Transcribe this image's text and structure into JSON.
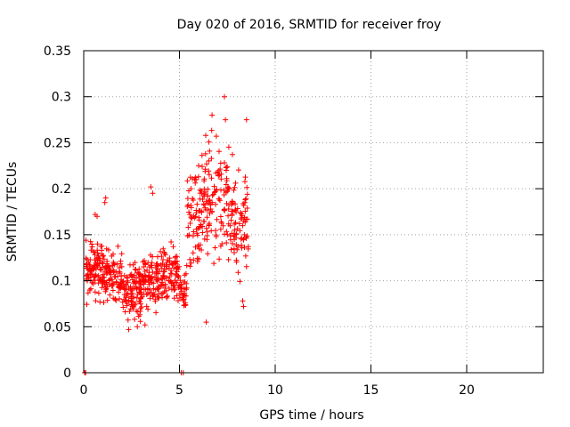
{
  "chart_data": {
    "type": "scatter",
    "title": "Day 020 of 2016, SRMTID for receiver froy",
    "xlabel": "GPS time / hours",
    "ylabel": "SRMTID / TECUs",
    "xlim": [
      0,
      24
    ],
    "ylim": [
      0,
      0.35
    ],
    "xticks": [
      0,
      5,
      10,
      15,
      20
    ],
    "xtick_labels": [
      "0",
      "5",
      "10",
      "15",
      "20"
    ],
    "yticks": [
      0,
      0.05,
      0.1,
      0.15,
      0.2,
      0.25,
      0.3,
      0.35
    ],
    "ytick_labels": [
      "0",
      "0.05",
      "0.1",
      "0.15",
      "0.2",
      "0.25",
      "0.3",
      "0.35"
    ],
    "grid": true,
    "marker": "plus",
    "color": "#ff0000",
    "series": [
      {
        "name": "SRMTID",
        "segments": [
          {
            "x_start": 0.1,
            "x_end": 1.0,
            "y_min": 0.07,
            "y_max": 0.155,
            "count": 95,
            "seed": 11
          },
          {
            "x_start": 1.0,
            "x_end": 2.0,
            "y_min": 0.065,
            "y_max": 0.145,
            "count": 95,
            "seed": 12
          },
          {
            "x_start": 2.0,
            "x_end": 3.0,
            "y_min": 0.05,
            "y_max": 0.13,
            "count": 105,
            "seed": 13
          },
          {
            "x_start": 3.0,
            "x_end": 4.0,
            "y_min": 0.06,
            "y_max": 0.14,
            "count": 100,
            "seed": 14
          },
          {
            "x_start": 4.0,
            "x_end": 5.0,
            "y_min": 0.065,
            "y_max": 0.15,
            "count": 95,
            "seed": 15
          },
          {
            "x_start": 5.0,
            "x_end": 5.4,
            "y_min": 0.055,
            "y_max": 0.125,
            "count": 35,
            "seed": 16
          },
          {
            "x_start": 5.4,
            "x_end": 6.3,
            "y_min": 0.09,
            "y_max": 0.26,
            "count": 80,
            "seed": 17
          },
          {
            "x_start": 6.3,
            "x_end": 7.6,
            "y_min": 0.1,
            "y_max": 0.28,
            "count": 110,
            "seed": 18
          },
          {
            "x_start": 7.6,
            "x_end": 8.6,
            "y_min": 0.08,
            "y_max": 0.25,
            "count": 85,
            "seed": 19
          }
        ],
        "points": [
          {
            "x": 0.05,
            "y": 0.0
          },
          {
            "x": 0.1,
            "y": 0.0
          },
          {
            "x": 5.1,
            "y": 0.0
          },
          {
            "x": 5.2,
            "y": 0.0
          },
          {
            "x": 1.15,
            "y": 0.19
          },
          {
            "x": 1.1,
            "y": 0.185
          },
          {
            "x": 0.6,
            "y": 0.172
          },
          {
            "x": 0.7,
            "y": 0.17
          },
          {
            "x": 3.5,
            "y": 0.202
          },
          {
            "x": 3.6,
            "y": 0.195
          },
          {
            "x": 7.35,
            "y": 0.3
          },
          {
            "x": 6.7,
            "y": 0.28
          },
          {
            "x": 8.5,
            "y": 0.275
          },
          {
            "x": 7.4,
            "y": 0.275
          },
          {
            "x": 6.4,
            "y": 0.055
          },
          {
            "x": 2.35,
            "y": 0.047
          },
          {
            "x": 2.8,
            "y": 0.05
          },
          {
            "x": 3.2,
            "y": 0.052
          },
          {
            "x": 5.6,
            "y": 0.2
          },
          {
            "x": 6.0,
            "y": 0.225
          },
          {
            "x": 8.3,
            "y": 0.078
          },
          {
            "x": 8.35,
            "y": 0.072
          }
        ]
      }
    ]
  }
}
